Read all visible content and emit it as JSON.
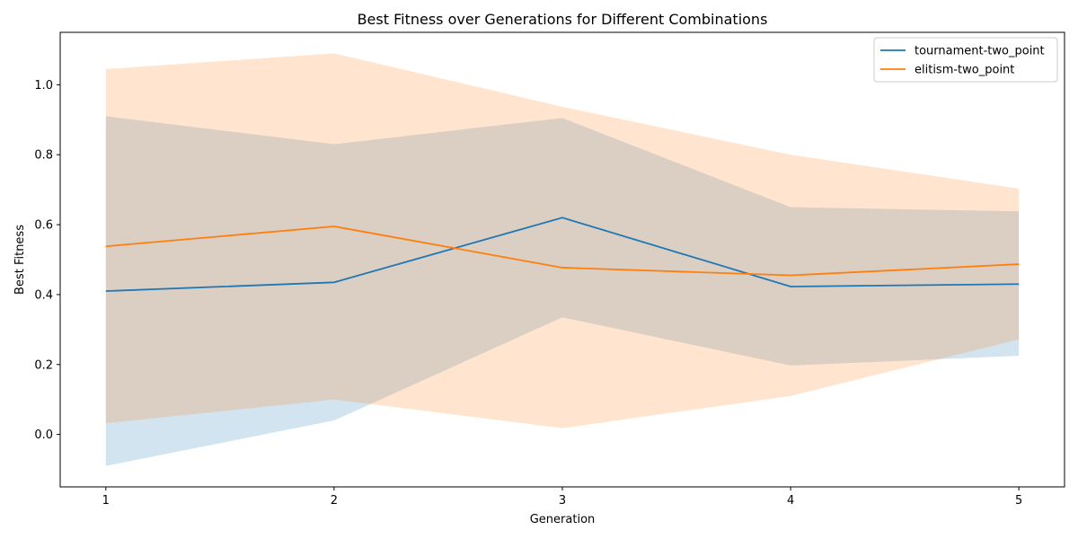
{
  "chart_data": {
    "type": "line",
    "title": "Best Fitness over Generations for Different Combinations",
    "xlabel": "Generation",
    "ylabel": "Best Fitness",
    "x": [
      1,
      2,
      3,
      4,
      5
    ],
    "xlim": [
      0.8,
      5.2
    ],
    "ylim": [
      -0.15,
      1.15
    ],
    "xticks": [
      1,
      2,
      3,
      4,
      5
    ],
    "yticks": [
      "0.0",
      "0.2",
      "0.4",
      "0.6",
      "0.8",
      "1.0"
    ],
    "grid": false,
    "legend_position": "top-right",
    "series": [
      {
        "name": "tournament-two_point",
        "color": "#1f77b4",
        "values": [
          0.41,
          0.435,
          0.62,
          0.423,
          0.43
        ],
        "lower": [
          -0.09,
          0.04,
          0.335,
          0.197,
          0.225
        ],
        "upper": [
          0.91,
          0.83,
          0.905,
          0.65,
          0.638
        ]
      },
      {
        "name": "elitism-two_point",
        "color": "#ff7f0e",
        "values": [
          0.538,
          0.595,
          0.477,
          0.455,
          0.487
        ],
        "lower": [
          0.032,
          0.1,
          0.018,
          0.11,
          0.272
        ],
        "upper": [
          1.045,
          1.09,
          0.937,
          0.8,
          0.703
        ]
      }
    ]
  }
}
